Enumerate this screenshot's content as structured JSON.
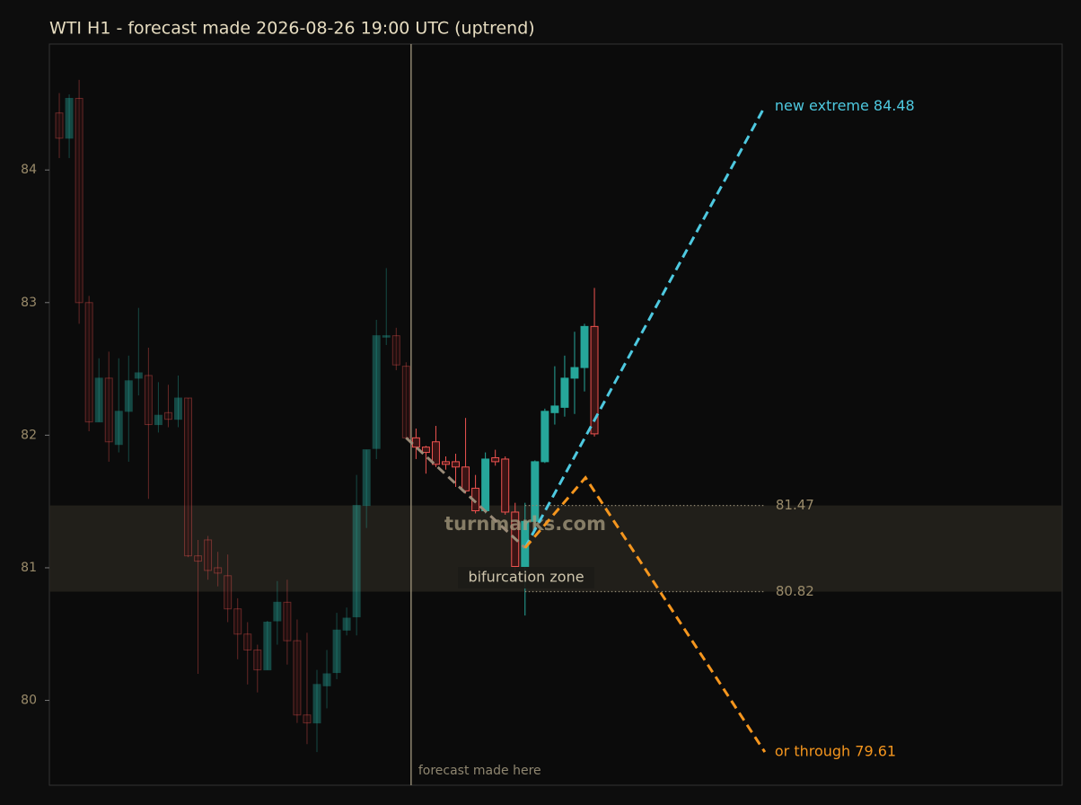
{
  "chart_data": {
    "type": "candlestick",
    "title": "WTI H1 - forecast made 2026-08-26 19:00 UTC (uptrend)",
    "watermark": "turnmarks.com",
    "up_color": "#26a69a",
    "down_color": "#ef5350",
    "ylim": [
      79.36,
      84.95
    ],
    "yticks": [
      80,
      81,
      82,
      83,
      84
    ],
    "xlim": [
      -1,
      101.2
    ],
    "open": [
      84.43,
      84.24,
      84.54,
      83.0,
      82.1,
      82.43,
      81.93,
      82.18,
      82.43,
      82.45,
      82.08,
      82.17,
      82.12,
      82.28,
      81.09,
      81.21,
      81.0,
      80.94,
      80.69,
      80.5,
      80.38,
      80.23,
      80.6,
      80.74,
      80.45,
      79.89,
      79.83,
      80.11,
      80.21,
      80.53,
      80.63,
      81.47,
      81.9,
      82.74,
      82.75,
      82.52,
      81.98,
      81.91,
      81.95,
      81.8,
      81.8,
      81.76,
      81.6,
      81.43,
      81.83,
      81.82,
      81.42,
      81.01,
      81.35,
      81.8,
      82.17,
      82.21,
      82.43,
      82.51,
      82.82
    ],
    "high": [
      84.58,
      84.57,
      84.68,
      83.05,
      82.58,
      82.63,
      82.58,
      82.6,
      82.96,
      82.66,
      82.4,
      82.38,
      82.45,
      82.28,
      81.21,
      81.24,
      81.12,
      81.1,
      80.77,
      80.59,
      80.42,
      80.6,
      80.9,
      80.91,
      80.61,
      80.51,
      80.23,
      80.38,
      80.66,
      80.7,
      81.7,
      81.89,
      82.87,
      83.26,
      82.81,
      82.55,
      82.05,
      81.92,
      82.07,
      81.84,
      81.86,
      82.13,
      81.7,
      81.87,
      81.89,
      81.84,
      81.49,
      81.49,
      81.81,
      82.2,
      82.52,
      82.6,
      82.78,
      82.84,
      83.11
    ],
    "low": [
      84.09,
      84.09,
      82.84,
      82.03,
      82.1,
      81.8,
      81.87,
      81.8,
      82.3,
      81.52,
      82.02,
      82.06,
      82.06,
      81.08,
      80.2,
      80.91,
      80.86,
      80.59,
      80.31,
      80.12,
      80.06,
      80.23,
      80.42,
      80.27,
      79.83,
      79.67,
      79.61,
      79.94,
      80.16,
      80.49,
      80.49,
      81.3,
      81.82,
      82.68,
      82.49,
      81.97,
      81.82,
      81.71,
      81.76,
      81.74,
      81.61,
      81.56,
      81.41,
      81.41,
      81.77,
      81.4,
      80.96,
      80.64,
      81.28,
      81.79,
      82.08,
      82.14,
      82.16,
      82.33,
      81.99
    ],
    "close": [
      84.24,
      84.54,
      83.0,
      82.1,
      82.43,
      81.95,
      82.18,
      82.41,
      82.47,
      82.08,
      82.15,
      82.12,
      82.28,
      81.09,
      81.05,
      80.98,
      80.96,
      80.69,
      80.5,
      80.38,
      80.23,
      80.59,
      80.74,
      80.45,
      79.89,
      79.83,
      80.12,
      80.2,
      80.53,
      80.62,
      81.47,
      81.89,
      82.75,
      82.75,
      82.53,
      81.98,
      81.91,
      81.87,
      81.78,
      81.78,
      81.76,
      81.58,
      81.43,
      81.82,
      81.8,
      81.42,
      81.01,
      81.35,
      81.8,
      82.18,
      82.22,
      82.43,
      82.51,
      82.82,
      82.01
    ],
    "forecast_marker": {
      "x": 35.5,
      "label": "forecast made here"
    },
    "zone": {
      "low": 80.82,
      "high": 81.47,
      "label": "bifurcation zone"
    },
    "paths": [
      {
        "color": "#9a8b78",
        "x": [
          35,
          47
        ],
        "values": [
          81.98,
          81.15
        ]
      },
      {
        "color": "#4ec9e0",
        "x": [
          47,
          71.2
        ],
        "values": [
          81.15,
          84.48
        ],
        "label": "new extreme 84.48"
      },
      {
        "color": "#f5961e",
        "x": [
          47,
          53.1,
          71.2
        ],
        "values": [
          81.15,
          81.68,
          79.61
        ],
        "label": "or through 79.61"
      }
    ]
  }
}
